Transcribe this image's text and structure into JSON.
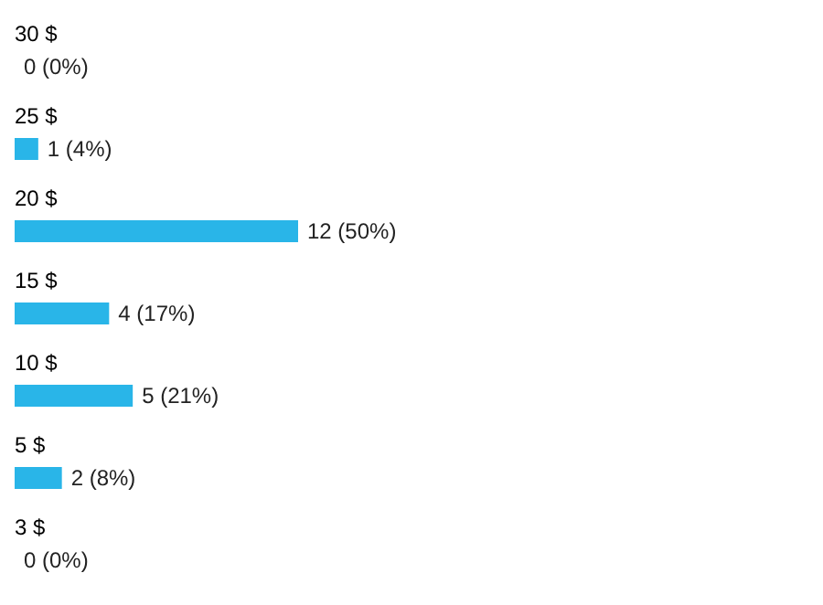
{
  "chart_data": {
    "type": "bar",
    "orientation": "horizontal",
    "categories": [
      "30 $",
      "25 $",
      "20 $",
      "15 $",
      "10 $",
      "5 $",
      "3 $"
    ],
    "values": [
      0,
      1,
      12,
      4,
      5,
      2,
      0
    ],
    "value_labels": [
      "0 (0%)",
      "1 (4%)",
      "12 (50%)",
      "4 (17%)",
      "5 (21%)",
      "2 (8%)",
      "0 (0%)"
    ],
    "color": "#29b5e8"
  }
}
